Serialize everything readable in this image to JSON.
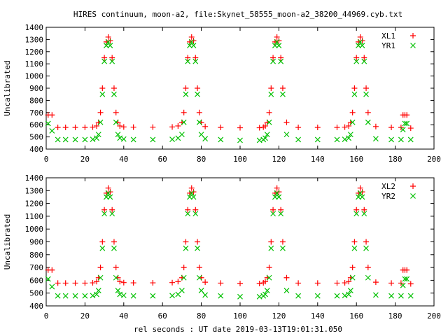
{
  "title": "HIRES continuum, moon-a2, file:Skynet_58555_moon-a2_38200_44969.cyb.txt",
  "xlabel": "rel seconds : UT date 2019-03-13T19:01:31.050",
  "colors": {
    "XL": "#ff0000",
    "YR": "#00c000",
    "frame": "#000000"
  },
  "chart_data": [
    {
      "type": "scatter",
      "ylabel": "Uncalibrated",
      "xlim": [
        0,
        200
      ],
      "ylim": [
        400,
        1400
      ],
      "xticks": [
        "0",
        "20",
        "40",
        "60",
        "80",
        "100",
        "120",
        "140",
        "160",
        "180",
        "200"
      ],
      "yticks": [
        "400",
        "500",
        "600",
        "700",
        "800",
        "900",
        "1000",
        "1100",
        "1200",
        "1300",
        "1400"
      ],
      "grid": false,
      "legend_position": "top-right",
      "series": [
        {
          "name": "XL1",
          "marker": "+",
          "color": "#ff0000",
          "x": [
            1,
            3,
            6,
            10,
            15,
            20,
            24,
            26,
            27,
            28,
            29,
            30,
            31,
            32,
            33,
            34,
            35,
            36,
            37,
            38,
            40,
            45,
            55,
            65,
            68,
            70,
            71,
            72,
            73,
            74,
            75,
            76,
            77,
            78,
            79,
            80,
            82,
            90,
            100,
            110,
            112,
            113,
            114,
            115,
            116,
            117,
            118,
            119,
            120,
            121,
            122,
            124,
            130,
            140,
            150,
            154,
            156,
            157,
            158,
            159,
            160,
            161,
            162,
            163,
            164,
            165,
            166,
            170,
            178,
            183,
            184,
            185,
            186,
            188
          ],
          "y": [
            680,
            680,
            578,
            578,
            578,
            578,
            580,
            590,
            620,
            700,
            900,
            1150,
            1280,
            1320,
            1290,
            1150,
            900,
            700,
            620,
            590,
            582,
            580,
            580,
            582,
            590,
            620,
            700,
            900,
            1150,
            1280,
            1320,
            1290,
            1150,
            900,
            700,
            620,
            585,
            578,
            575,
            575,
            580,
            590,
            620,
            700,
            900,
            1150,
            1280,
            1320,
            1290,
            1150,
            900,
            620,
            578,
            578,
            578,
            580,
            590,
            620,
            700,
            900,
            1150,
            1280,
            1320,
            1290,
            1150,
            900,
            700,
            585,
            578,
            578,
            680,
            680,
            680,
            572
          ]
        },
        {
          "name": "YR1",
          "marker": "x",
          "color": "#00c000",
          "x": [
            1,
            3,
            6,
            10,
            15,
            20,
            24,
            26,
            27,
            28,
            29,
            30,
            31,
            32,
            33,
            34,
            35,
            36,
            37,
            38,
            40,
            45,
            55,
            65,
            68,
            70,
            71,
            72,
            73,
            74,
            75,
            76,
            77,
            78,
            79,
            80,
            82,
            90,
            100,
            110,
            112,
            113,
            114,
            115,
            116,
            117,
            118,
            119,
            120,
            121,
            122,
            124,
            130,
            140,
            150,
            154,
            156,
            157,
            158,
            159,
            160,
            161,
            162,
            163,
            164,
            165,
            166,
            170,
            178,
            183,
            184,
            185,
            186,
            188
          ],
          "y": [
            610,
            550,
            478,
            478,
            478,
            478,
            480,
            490,
            520,
            620,
            850,
            1120,
            1250,
            1280,
            1250,
            1120,
            850,
            620,
            520,
            490,
            482,
            478,
            478,
            480,
            490,
            520,
            620,
            850,
            1120,
            1250,
            1280,
            1250,
            1120,
            850,
            620,
            520,
            485,
            478,
            472,
            472,
            478,
            490,
            520,
            620,
            850,
            1120,
            1250,
            1280,
            1250,
            1120,
            850,
            520,
            478,
            478,
            478,
            480,
            490,
            520,
            620,
            850,
            1120,
            1250,
            1280,
            1250,
            1120,
            850,
            620,
            485,
            478,
            478,
            560,
            610,
            610,
            478
          ]
        }
      ]
    },
    {
      "type": "scatter",
      "ylabel": "Uncalibrated",
      "xlim": [
        0,
        200
      ],
      "ylim": [
        400,
        1400
      ],
      "xticks": [
        "0",
        "20",
        "40",
        "60",
        "80",
        "100",
        "120",
        "140",
        "160",
        "180",
        "200"
      ],
      "yticks": [
        "400",
        "500",
        "600",
        "700",
        "800",
        "900",
        "1000",
        "1100",
        "1200",
        "1300",
        "1400"
      ],
      "grid": false,
      "legend_position": "top-right",
      "series": [
        {
          "name": "XL2",
          "marker": "+",
          "color": "#ff0000",
          "x": [
            1,
            3,
            6,
            10,
            15,
            20,
            24,
            26,
            27,
            28,
            29,
            30,
            31,
            32,
            33,
            34,
            35,
            36,
            37,
            38,
            40,
            45,
            55,
            65,
            68,
            70,
            71,
            72,
            73,
            74,
            75,
            76,
            77,
            78,
            79,
            80,
            82,
            90,
            100,
            110,
            112,
            113,
            114,
            115,
            116,
            117,
            118,
            119,
            120,
            121,
            122,
            124,
            130,
            140,
            150,
            154,
            156,
            157,
            158,
            159,
            160,
            161,
            162,
            163,
            164,
            165,
            166,
            170,
            178,
            183,
            184,
            185,
            186,
            188
          ],
          "y": [
            680,
            680,
            578,
            578,
            578,
            578,
            580,
            590,
            620,
            700,
            900,
            1150,
            1280,
            1320,
            1290,
            1150,
            900,
            700,
            620,
            590,
            582,
            580,
            580,
            582,
            590,
            620,
            700,
            900,
            1150,
            1280,
            1320,
            1290,
            1150,
            900,
            700,
            620,
            585,
            578,
            575,
            575,
            580,
            590,
            620,
            700,
            900,
            1150,
            1280,
            1320,
            1290,
            1150,
            900,
            620,
            578,
            578,
            578,
            580,
            590,
            620,
            700,
            900,
            1150,
            1280,
            1320,
            1290,
            1150,
            900,
            700,
            585,
            578,
            578,
            680,
            680,
            680,
            572
          ]
        },
        {
          "name": "YR2",
          "marker": "x",
          "color": "#00c000",
          "x": [
            1,
            3,
            6,
            10,
            15,
            20,
            24,
            26,
            27,
            28,
            29,
            30,
            31,
            32,
            33,
            34,
            35,
            36,
            37,
            38,
            40,
            45,
            55,
            65,
            68,
            70,
            71,
            72,
            73,
            74,
            75,
            76,
            77,
            78,
            79,
            80,
            82,
            90,
            100,
            110,
            112,
            113,
            114,
            115,
            116,
            117,
            118,
            119,
            120,
            121,
            122,
            124,
            130,
            140,
            150,
            154,
            156,
            157,
            158,
            159,
            160,
            161,
            162,
            163,
            164,
            165,
            166,
            170,
            178,
            183,
            184,
            185,
            186,
            188
          ],
          "y": [
            610,
            550,
            478,
            478,
            478,
            478,
            480,
            490,
            520,
            620,
            850,
            1120,
            1250,
            1280,
            1250,
            1120,
            850,
            620,
            520,
            490,
            482,
            478,
            478,
            480,
            490,
            520,
            620,
            850,
            1120,
            1250,
            1280,
            1250,
            1120,
            850,
            620,
            520,
            485,
            478,
            472,
            472,
            478,
            490,
            520,
            620,
            850,
            1120,
            1250,
            1280,
            1250,
            1120,
            850,
            520,
            478,
            478,
            478,
            480,
            490,
            520,
            620,
            850,
            1120,
            1250,
            1280,
            1250,
            1120,
            850,
            620,
            485,
            478,
            478,
            560,
            610,
            610,
            478
          ]
        }
      ]
    }
  ]
}
